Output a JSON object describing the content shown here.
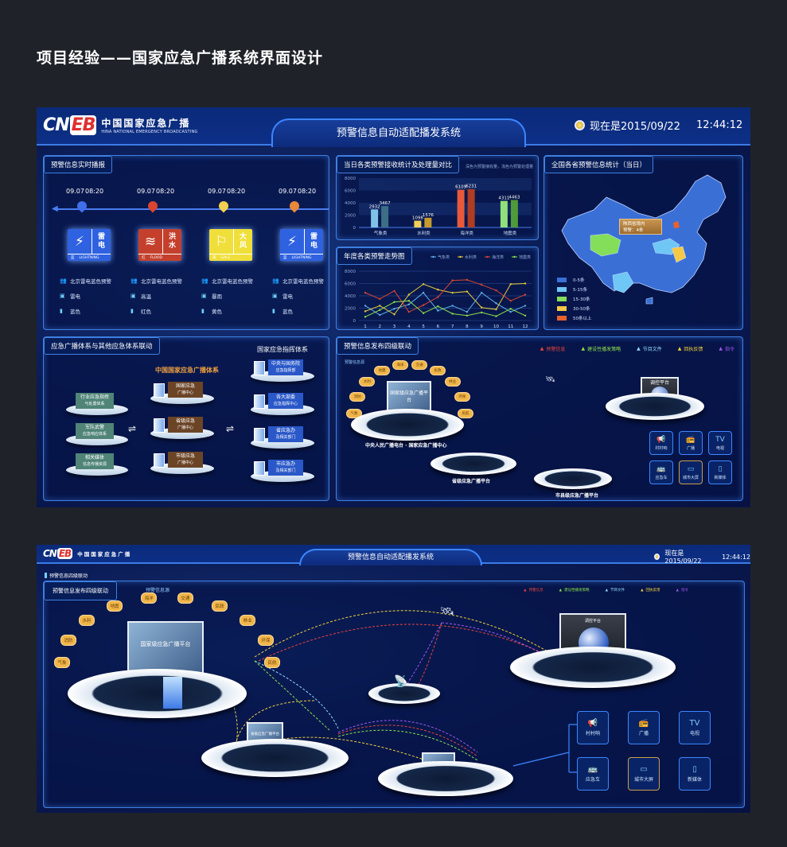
{
  "page_title": "项目经验——国家应急广播系统界面设计",
  "brand": {
    "mark_a": "CN",
    "mark_b": "EB",
    "name_cn": "中国国家应急广播",
    "name_en": "HINA NATIONAL EMERGENCY BROADCASTING"
  },
  "header": {
    "system_title": "预警信息自动适配播发系统",
    "clock_text": "现在是2015/09/22",
    "time": "12:44:12"
  },
  "realtime": {
    "title": "预警信息实时播报",
    "items": [
      {
        "date": "09.07",
        "time": "08:20",
        "pin_color": "#3f6fe8",
        "card_color": "#2f62e0",
        "icon": "lightning-icon",
        "glyph": "⚡",
        "name": [
          "雷",
          "电"
        ],
        "level_char": "蓝",
        "en": "LIGHTNING",
        "location": "北京雷电蓝色预警",
        "type": "雷电",
        "level": "蓝色"
      },
      {
        "date": "09.07",
        "time": "08:20",
        "pin_color": "#d9452f",
        "card_color": "#c4402c",
        "icon": "flood-icon",
        "glyph": "≋",
        "name": [
          "洪",
          "水"
        ],
        "level_char": "红",
        "en": "FLOOD",
        "location": "北京雷电蓝色预警",
        "type": "高温",
        "level": "红色"
      },
      {
        "date": "09.07",
        "time": "08:20",
        "pin_color": "#f2cf4e",
        "card_color": "#f0df3a",
        "icon": "wind-flag-icon",
        "glyph": "⚐",
        "name": [
          "大",
          "风"
        ],
        "level_char": "黄",
        "en": "GALE",
        "location": "北京雷电蓝色预警",
        "type": "暴雨",
        "level": "黄色"
      },
      {
        "date": "09.07",
        "time": "08:20",
        "pin_color": "#e8883a",
        "card_color": "#2f62e0",
        "icon": "lightning-icon",
        "glyph": "⚡",
        "name": [
          "雷",
          "电"
        ],
        "level_char": "蓝",
        "en": "LIGHTNING",
        "location": "北京雷电蓝色预警",
        "type": "雷电",
        "level": "蓝色"
      }
    ]
  },
  "chart_data": [
    {
      "type": "bar",
      "title": "当日各类预警接收统计及处理量对比",
      "subtitle": "深色为预警接收量，浅色为预警处理量",
      "categories": [
        "气象类",
        "水利类",
        "海洋类",
        "地震类"
      ],
      "series": [
        {
          "values": [
            2932,
            1098,
            6109,
            4311
          ]
        },
        {
          "values": [
            3467,
            1576,
            6231,
            4463
          ]
        }
      ],
      "colors": [
        [
          "#7fc3e6",
          "#3c6e86"
        ],
        [
          "#f2cf5a",
          "#c79a2e"
        ],
        [
          "#e8593a",
          "#b03c22"
        ],
        [
          "#8fe07a",
          "#4f9a3a"
        ]
      ],
      "ylim": [
        0,
        8000
      ],
      "yticks": [
        0,
        2000,
        4000,
        6000,
        8000
      ]
    },
    {
      "type": "line",
      "title": "年度各类预警走势图",
      "x": [
        1,
        2,
        3,
        4,
        5,
        6,
        7,
        8,
        9,
        10,
        11,
        12
      ],
      "ylim": [
        0,
        8000
      ],
      "yticks": [
        0,
        2000,
        4000,
        6000,
        8000
      ],
      "legend": "top-right",
      "series": [
        {
          "name": "气象类",
          "color": "#5fb0ea",
          "values": [
            2400,
            900,
            1900,
            2600,
            4500,
            1600,
            2400,
            1400,
            4500,
            2800,
            1400,
            2400
          ]
        },
        {
          "name": "水利类",
          "color": "#e8c93a",
          "values": [
            1500,
            2400,
            1000,
            4200,
            5900,
            5000,
            4500,
            4700,
            2100,
            1800,
            5900,
            6000
          ]
        },
        {
          "name": "海洋类",
          "color": "#d9452f",
          "values": [
            4500,
            3500,
            4800,
            1400,
            2500,
            3800,
            6500,
            6600,
            5800,
            4900,
            3200,
            4200
          ]
        },
        {
          "name": "地震类",
          "color": "#8ee04a",
          "values": [
            600,
            1700,
            3000,
            3200,
            1200,
            2300,
            1100,
            800,
            1300,
            700,
            1900,
            800
          ]
        }
      ]
    }
  ],
  "map": {
    "title": "全国各省预警信息统计（当日）",
    "tooltip_line1": "陕西省境内",
    "tooltip_line2": "预警：4条",
    "legend": [
      {
        "label": "0-5条",
        "color": "#3a6fd6"
      },
      {
        "label": "5-15条",
        "color": "#6ec7f5"
      },
      {
        "label": "15-30条",
        "color": "#84de5a"
      },
      {
        "label": "30-50条",
        "color": "#f5c947"
      },
      {
        "label": "50条以上",
        "color": "#e8622e"
      }
    ]
  },
  "linkage": {
    "title": "应急广播体系与其他应急体系联动",
    "center_title": "中国国家应急广播体系",
    "right_title": "国家应急指挥体系",
    "swap_glyph": "⇌",
    "left": [
      [
        "行业应急指挥",
        "与处置体系"
      ],
      [
        "军队武警",
        "应急响应体系"
      ],
      [
        "相关媒体",
        "信息传播资源"
      ]
    ],
    "center": [
      [
        "国家应急",
        "广播中心"
      ],
      [
        "省级应急",
        "广播中心"
      ],
      [
        "市级应急",
        "广播中心"
      ]
    ],
    "right": [
      [
        "中央与国务院",
        "应急指挥部"
      ],
      [
        "各大部委",
        "应急指挥中心"
      ],
      [
        "省应急办",
        "及相关部门"
      ],
      [
        "市应急办",
        "及相关部门"
      ]
    ]
  },
  "four_level": {
    "title": "预警信息发布四级联动",
    "section_label": "预警信息四级联动",
    "source_label": "预警信息源",
    "legend": [
      {
        "label": "预警信息",
        "color": "#e8433a"
      },
      {
        "label": "建设性播发策略",
        "color": "#8ee04a"
      },
      {
        "label": "节目文件",
        "color": "#8fd8ff"
      },
      {
        "label": "回执反馈",
        "color": "#f2cf3a"
      },
      {
        "label": "指令",
        "color": "#a057f0"
      }
    ],
    "sources": [
      "气象",
      "消防",
      "水利",
      "地震",
      "海洋",
      "交通",
      "民政",
      "林业",
      "环保",
      "民航"
    ],
    "national_screen": "国家级应急广播平台",
    "national_label": "中央人民广播电台 · 国家应急广播中心",
    "province_label": "省级应急广播平台",
    "city_label": "市县级应急广播平台",
    "dispatch_label": "调控平台",
    "devices": [
      {
        "label": "村村响",
        "icon": "megaphone-icon",
        "glyph": "📢"
      },
      {
        "label": "广播",
        "icon": "radio-icon",
        "glyph": "📻"
      },
      {
        "label": "电视",
        "icon": "tv-icon",
        "glyph": "TV"
      },
      {
        "label": "应急车",
        "icon": "bus-icon",
        "glyph": "🚌"
      },
      {
        "label": "城市大屏",
        "icon": "billboard-icon",
        "glyph": "▭"
      },
      {
        "label": "新媒体",
        "icon": "phone-icon",
        "glyph": "▯"
      }
    ]
  }
}
